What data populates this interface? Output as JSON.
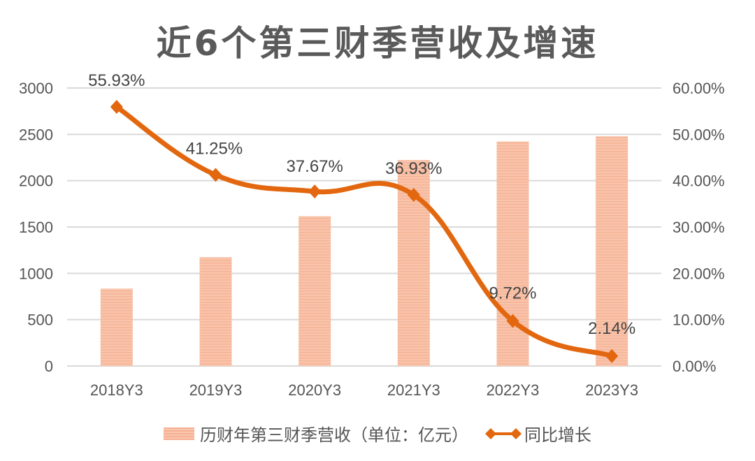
{
  "chart_data": {
    "type": "bar+line",
    "title": "近6个第三财季营收及增速",
    "categories": [
      "2018Y3",
      "2019Y3",
      "2020Y3",
      "2021Y3",
      "2022Y3",
      "2023Y3"
    ],
    "series": [
      {
        "name": "历财年第三财季营收（单位：亿元）",
        "type": "bar",
        "axis": "left",
        "values": [
          835,
          1173,
          1617,
          2223,
          2423,
          2479
        ],
        "color": "#f8bda3"
      },
      {
        "name": "同比增长",
        "type": "line",
        "axis": "right",
        "values": [
          55.93,
          41.25,
          37.67,
          36.93,
          9.72,
          2.14
        ],
        "labels": [
          "55.93%",
          "41.25%",
          "37.67%",
          "36.93%",
          "9.72%",
          "2.14%"
        ],
        "color": "#e2670f"
      }
    ],
    "left_axis": {
      "ylim": [
        0,
        3000
      ],
      "ticks": [
        "0",
        "500",
        "1000",
        "1500",
        "2000",
        "2500",
        "3000"
      ]
    },
    "right_axis": {
      "ylim": [
        0,
        60
      ],
      "ticks": [
        "0.00%",
        "10.00%",
        "20.00%",
        "30.00%",
        "40.00%",
        "50.00%",
        "60.00%"
      ]
    },
    "grid": true,
    "legend": "bottom"
  }
}
